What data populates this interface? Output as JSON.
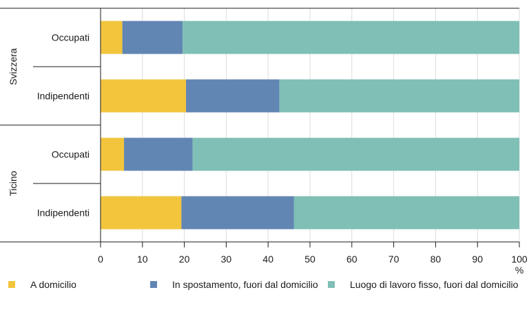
{
  "chart_data": {
    "type": "bar",
    "orientation": "horizontal",
    "stacked": true,
    "groups": [
      {
        "name": "Svizzera",
        "categories": [
          "Occupati",
          "Indipendenti"
        ]
      },
      {
        "name": "Ticino",
        "categories": [
          "Occupati",
          "Indipendenti"
        ]
      }
    ],
    "categories": [
      {
        "label": "Occupati",
        "group": "Svizzera"
      },
      {
        "label": "Indipendenti",
        "group": "Svizzera"
      },
      {
        "label": "Occupati",
        "group": "Ticino"
      },
      {
        "label": "Indipendenti",
        "group": "Ticino"
      }
    ],
    "series": [
      {
        "name": "A domicilio",
        "color": "#f2c53d",
        "values": [
          5.2,
          20.4,
          5.6,
          19.3
        ]
      },
      {
        "name": "In spostamento, fuori dal domicilio",
        "color": "#6286b3",
        "values": [
          14.4,
          22.3,
          16.4,
          26.9
        ]
      },
      {
        "name": "Luogo di lavoro fisso, fuori dal domicilio",
        "color": "#7fbfb5",
        "values": [
          80.4,
          57.3,
          78.0,
          53.8
        ]
      }
    ],
    "xlim": [
      0,
      100
    ],
    "xticks": [
      "0",
      "10",
      "20",
      "30",
      "40",
      "50",
      "60",
      "70",
      "80",
      "90",
      "100"
    ],
    "xunit": "%",
    "grid": "vertical",
    "legend_position": "bottom",
    "title": "",
    "xlabel": "",
    "ylabel": ""
  }
}
